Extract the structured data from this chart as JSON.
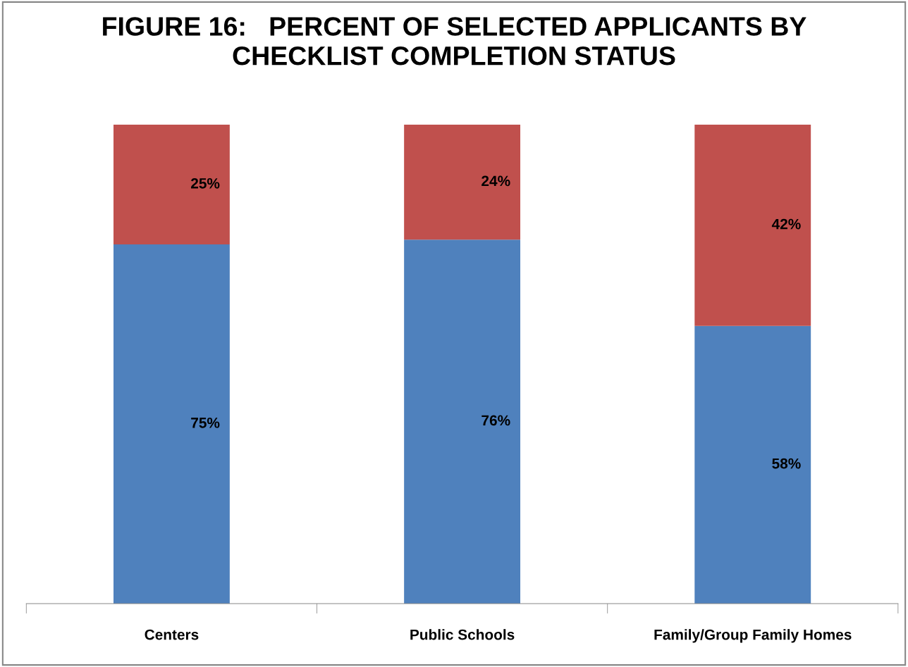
{
  "chart_data": {
    "type": "bar",
    "title": "FIGURE 16:   PERCENT OF SELECTED APPLICANTS BY\nCHECKLIST COMPLETION STATUS",
    "categories": [
      "Centers",
      "Public Schools",
      "Family/Group Family Homes"
    ],
    "stacked": true,
    "data_labels": false,
    "grid": false,
    "legend": false,
    "series": [
      {
        "color": "#4f81bd",
        "values": [
          75,
          76,
          58
        ],
        "value_labels": [
          "75%",
          "76%",
          "58%"
        ]
      },
      {
        "color": "#c0504d",
        "values": [
          25,
          24,
          42
        ],
        "value_labels": [
          "25%",
          "24%",
          "42%"
        ]
      }
    ]
  }
}
